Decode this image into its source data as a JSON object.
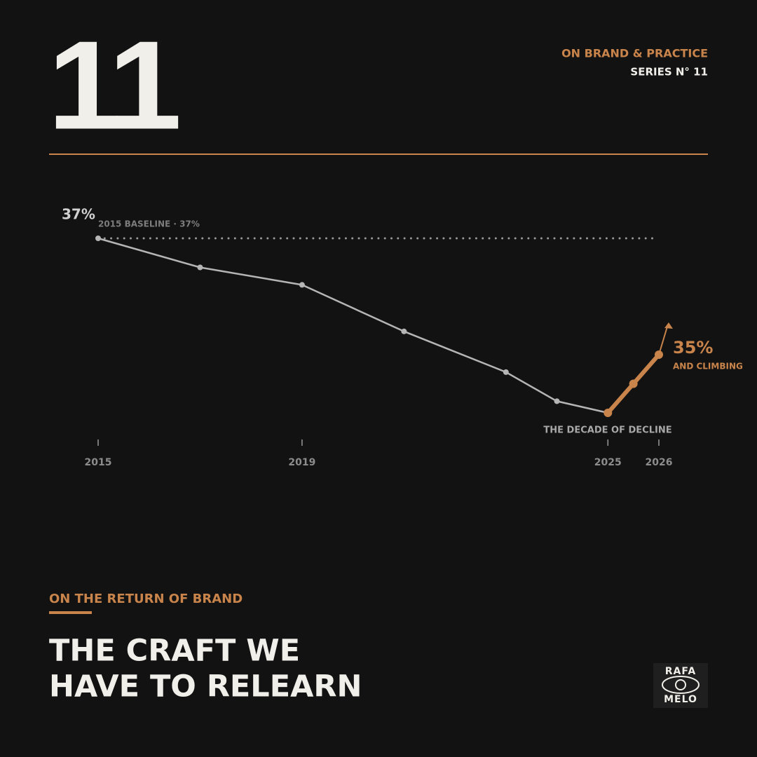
{
  "header": {
    "number": "11",
    "kicker": "ON BRAND & PRACTICE",
    "series": "SERIES N° 11"
  },
  "chart_data": {
    "type": "line",
    "xlim": [
      2015,
      2026
    ],
    "xticks": [
      2015,
      2019,
      2025,
      2026
    ],
    "ylim": [
      33,
      38
    ],
    "series": [
      {
        "color": "#b5b5b5",
        "x": [
          2015,
          2017,
          2019,
          2021,
          2023,
          2024,
          2025
        ],
        "values": [
          37,
          36.5,
          36.2,
          35.4,
          34.7,
          34.2,
          34
        ]
      },
      {
        "color": "#c8844a",
        "x": [
          2025,
          2025.5,
          2026
        ],
        "values": [
          34,
          34.5,
          35
        ]
      }
    ],
    "baseline": {
      "value": 37,
      "label": "2015 BASELINE · 37%"
    },
    "start_label": {
      "value": 37,
      "label": "37%"
    },
    "end_label": {
      "value": 35,
      "label": "35%",
      "note": "AND CLIMBING"
    },
    "annotation": "THE DECADE OF DECLINE"
  },
  "footer": {
    "kicker": "ON THE RETURN OF BRAND",
    "headline": [
      "THE CRAFT WE",
      "HAVE TO RELEARN"
    ],
    "logo": [
      "RAFA",
      "MELO"
    ]
  }
}
